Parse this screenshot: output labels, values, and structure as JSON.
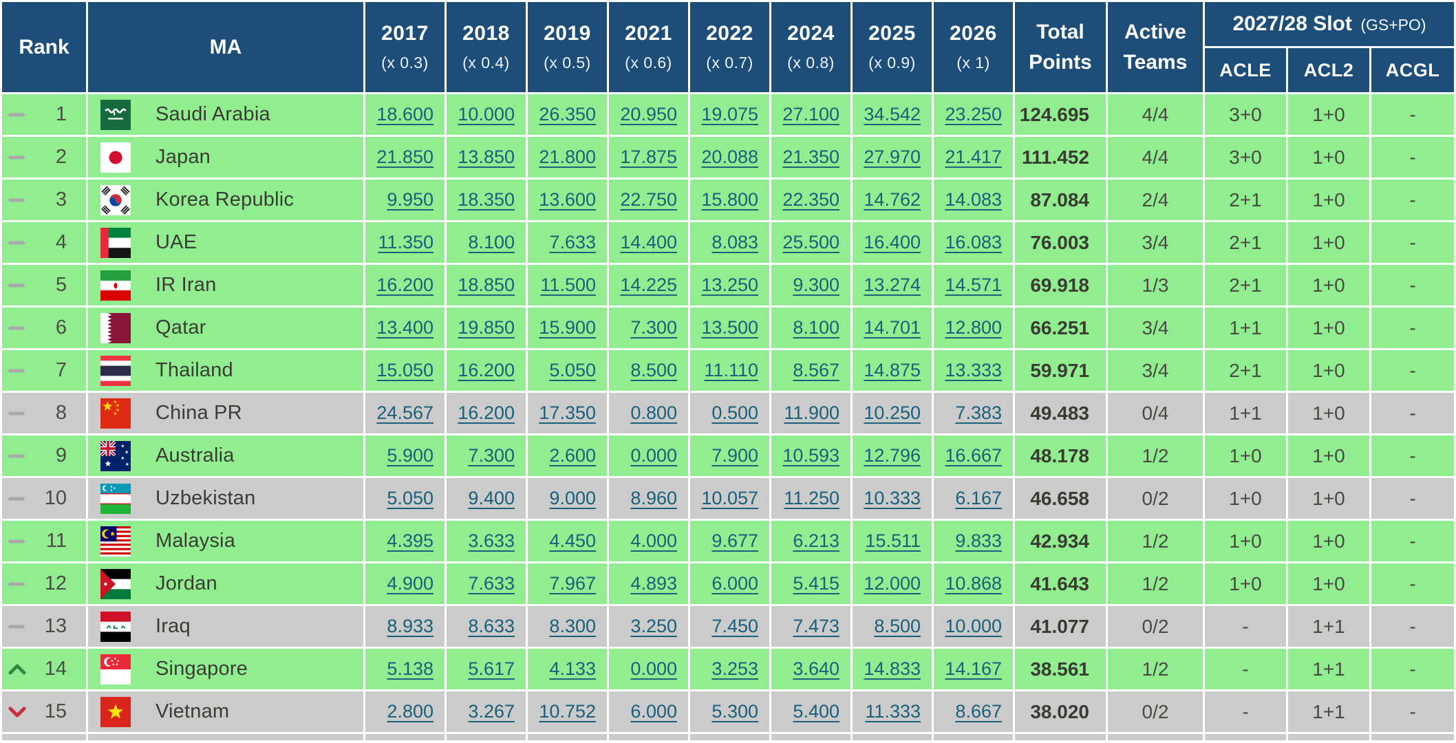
{
  "colors": {
    "header_bg": "#1c4e79",
    "row_green": "#90ee90",
    "row_gray": "#cbcbcb",
    "link": "#1a607b",
    "up_arrow": "#2e8b3f",
    "down_arrow": "#c62f3b",
    "dash": "#a9a9a9"
  },
  "table": {
    "header": {
      "rank": "Rank",
      "ma": "MA",
      "years": [
        {
          "year": "2017",
          "multiplier": "(x 0.3)"
        },
        {
          "year": "2018",
          "multiplier": "(x 0.4)"
        },
        {
          "year": "2019",
          "multiplier": "(x 0.5)"
        },
        {
          "year": "2021",
          "multiplier": "(x 0.6)"
        },
        {
          "year": "2022",
          "multiplier": "(x 0.7)"
        },
        {
          "year": "2024",
          "multiplier": "(x 0.8)"
        },
        {
          "year": "2025",
          "multiplier": "(x 0.9)"
        },
        {
          "year": "2026",
          "multiplier": "(x 1)"
        }
      ],
      "total_points_lines": [
        "Total",
        "Points"
      ],
      "active_teams_lines": [
        "Active",
        "Teams"
      ],
      "slot_group": {
        "title": "2027/28 Slot",
        "suffix": "(GS+PO)",
        "columns": [
          "ACLE",
          "ACL2",
          "ACGL"
        ]
      }
    },
    "rows": [
      {
        "rank": "1",
        "change": "same",
        "flag": "sau",
        "country": "Saudi Arabia",
        "values": [
          "18.600",
          "10.000",
          "26.350",
          "20.950",
          "19.075",
          "27.100",
          "34.542",
          "23.250"
        ],
        "total": "124.695",
        "active": "4/4",
        "slots": [
          "3+0",
          "1+0",
          "-"
        ],
        "highlight": "green"
      },
      {
        "rank": "2",
        "change": "same",
        "flag": "jpn",
        "country": "Japan",
        "values": [
          "21.850",
          "13.850",
          "21.800",
          "17.875",
          "20.088",
          "21.350",
          "27.970",
          "21.417"
        ],
        "total": "111.452",
        "active": "4/4",
        "slots": [
          "3+0",
          "1+0",
          "-"
        ],
        "highlight": "green"
      },
      {
        "rank": "3",
        "change": "same",
        "flag": "kor",
        "country": "Korea Republic",
        "values": [
          "9.950",
          "18.350",
          "13.600",
          "22.750",
          "15.800",
          "22.350",
          "14.762",
          "14.083"
        ],
        "total": "87.084",
        "active": "2/4",
        "slots": [
          "2+1",
          "1+0",
          "-"
        ],
        "highlight": "green"
      },
      {
        "rank": "4",
        "change": "same",
        "flag": "uae",
        "country": "UAE",
        "values": [
          "11.350",
          "8.100",
          "7.633",
          "14.400",
          "8.083",
          "25.500",
          "16.400",
          "16.083"
        ],
        "total": "76.003",
        "active": "3/4",
        "slots": [
          "2+1",
          "1+0",
          "-"
        ],
        "highlight": "green"
      },
      {
        "rank": "5",
        "change": "same",
        "flag": "irn",
        "country": "IR Iran",
        "values": [
          "16.200",
          "18.850",
          "11.500",
          "14.225",
          "13.250",
          "9.300",
          "13.274",
          "14.571"
        ],
        "total": "69.918",
        "active": "1/3",
        "slots": [
          "2+1",
          "1+0",
          "-"
        ],
        "highlight": "green"
      },
      {
        "rank": "6",
        "change": "same",
        "flag": "qat",
        "country": "Qatar",
        "values": [
          "13.400",
          "19.850",
          "15.900",
          "7.300",
          "13.500",
          "8.100",
          "14.701",
          "12.800"
        ],
        "total": "66.251",
        "active": "3/4",
        "slots": [
          "1+1",
          "1+0",
          "-"
        ],
        "highlight": "green"
      },
      {
        "rank": "7",
        "change": "same",
        "flag": "tha",
        "country": "Thailand",
        "values": [
          "15.050",
          "16.200",
          "5.050",
          "8.500",
          "11.110",
          "8.567",
          "14.875",
          "13.333"
        ],
        "total": "59.971",
        "active": "3/4",
        "slots": [
          "2+1",
          "1+0",
          "-"
        ],
        "highlight": "green"
      },
      {
        "rank": "8",
        "change": "same",
        "flag": "chn",
        "country": "China PR",
        "values": [
          "24.567",
          "16.200",
          "17.350",
          "0.800",
          "0.500",
          "11.900",
          "10.250",
          "7.383"
        ],
        "total": "49.483",
        "active": "0/4",
        "slots": [
          "1+1",
          "1+0",
          "-"
        ],
        "highlight": "gray"
      },
      {
        "rank": "9",
        "change": "same",
        "flag": "aus",
        "country": "Australia",
        "values": [
          "5.900",
          "7.300",
          "2.600",
          "0.000",
          "7.900",
          "10.593",
          "12.796",
          "16.667"
        ],
        "total": "48.178",
        "active": "1/2",
        "slots": [
          "1+0",
          "1+0",
          "-"
        ],
        "highlight": "green"
      },
      {
        "rank": "10",
        "change": "same",
        "flag": "uzb",
        "country": "Uzbekistan",
        "values": [
          "5.050",
          "9.400",
          "9.000",
          "8.960",
          "10.057",
          "11.250",
          "10.333",
          "6.167"
        ],
        "total": "46.658",
        "active": "0/2",
        "slots": [
          "1+0",
          "1+0",
          "-"
        ],
        "highlight": "gray"
      },
      {
        "rank": "11",
        "change": "same",
        "flag": "mys",
        "country": "Malaysia",
        "values": [
          "4.395",
          "3.633",
          "4.450",
          "4.000",
          "9.677",
          "6.213",
          "15.511",
          "9.833"
        ],
        "total": "42.934",
        "active": "1/2",
        "slots": [
          "1+0",
          "1+0",
          "-"
        ],
        "highlight": "green"
      },
      {
        "rank": "12",
        "change": "same",
        "flag": "jor",
        "country": "Jordan",
        "values": [
          "4.900",
          "7.633",
          "7.967",
          "4.893",
          "6.000",
          "5.415",
          "12.000",
          "10.868"
        ],
        "total": "41.643",
        "active": "1/2",
        "slots": [
          "1+0",
          "1+0",
          "-"
        ],
        "highlight": "green"
      },
      {
        "rank": "13",
        "change": "same",
        "flag": "irq",
        "country": "Iraq",
        "values": [
          "8.933",
          "8.633",
          "8.300",
          "3.250",
          "7.450",
          "7.473",
          "8.500",
          "10.000"
        ],
        "total": "41.077",
        "active": "0/2",
        "slots": [
          "-",
          "1+1",
          "-"
        ],
        "highlight": "gray"
      },
      {
        "rank": "14",
        "change": "up",
        "flag": "sgp",
        "country": "Singapore",
        "values": [
          "5.138",
          "5.617",
          "4.133",
          "0.000",
          "3.253",
          "3.640",
          "14.833",
          "14.167"
        ],
        "total": "38.561",
        "active": "1/2",
        "slots": [
          "-",
          "1+1",
          "-"
        ],
        "highlight": "green"
      },
      {
        "rank": "15",
        "change": "down",
        "flag": "vnm",
        "country": "Vietnam",
        "values": [
          "2.800",
          "3.267",
          "10.752",
          "6.000",
          "5.300",
          "5.400",
          "11.333",
          "8.667"
        ],
        "total": "38.020",
        "active": "0/2",
        "slots": [
          "-",
          "1+1",
          "-"
        ],
        "highlight": "gray"
      }
    ]
  }
}
